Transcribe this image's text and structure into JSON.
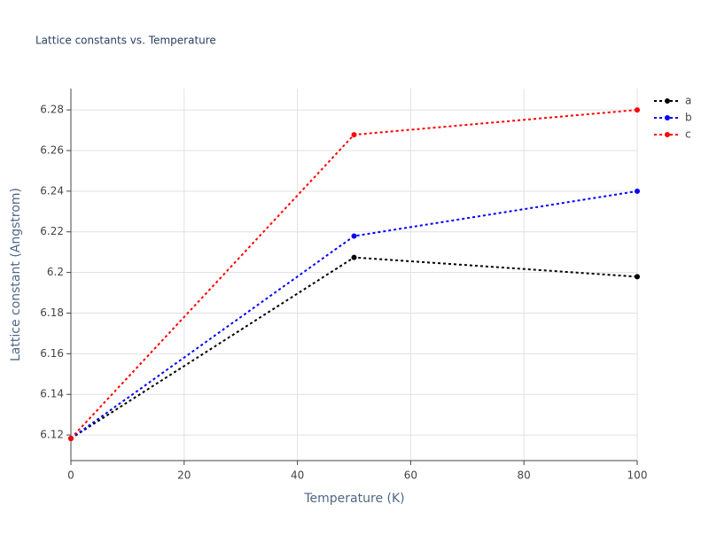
{
  "chart_data": {
    "type": "line",
    "title": "Lattice constants vs. Temperature",
    "x_label": "Temperature (K)",
    "y_label": "Lattice constant (Angstrom)",
    "x": [
      0,
      50,
      100
    ],
    "series": [
      {
        "name": "a",
        "color": "#000000",
        "values": [
          6.1183,
          6.2074,
          6.1979
        ]
      },
      {
        "name": "b",
        "color": "#0000ff",
        "values": [
          6.1183,
          6.2179,
          6.24
        ]
      },
      {
        "name": "c",
        "color": "#ff0000",
        "values": [
          6.1183,
          6.2678,
          6.28
        ]
      }
    ],
    "xlim": [
      0,
      100
    ],
    "xticks": [
      0,
      20,
      40,
      60,
      80,
      100
    ],
    "ylim": [
      6.1074,
      6.2905
    ],
    "yticks": [
      6.12,
      6.14,
      6.16,
      6.18,
      6.2,
      6.22,
      6.24,
      6.26,
      6.28
    ],
    "grid": true,
    "line_style": "dotted",
    "legend": "top-right"
  }
}
